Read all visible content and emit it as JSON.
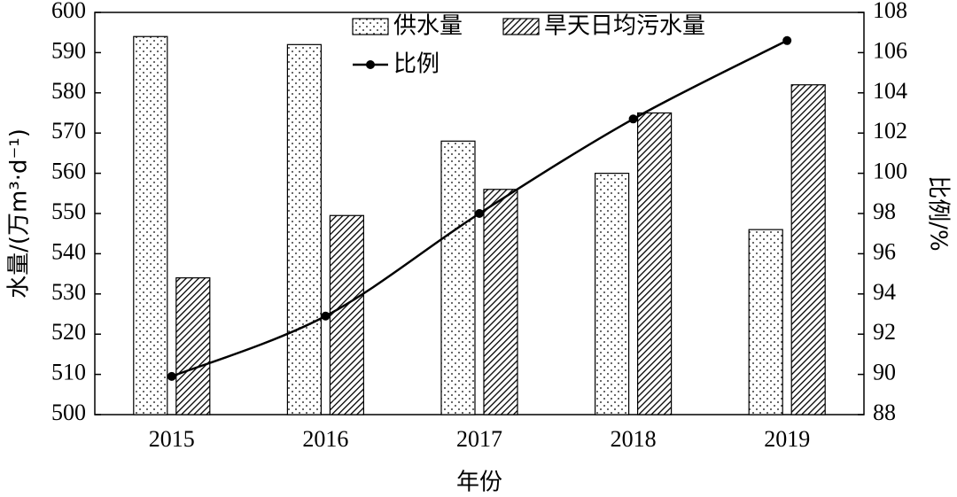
{
  "chart_data": {
    "type": "bar-line",
    "xlabel": "年份",
    "ylabel": "水量/(万m³·d⁻¹)",
    "y2label": "比例/%",
    "categories": [
      "2015",
      "2016",
      "2017",
      "2018",
      "2019"
    ],
    "series": [
      {
        "name": "供水量",
        "type": "bar",
        "color": "#000000",
        "pattern": "dots",
        "values": [
          594,
          592,
          568,
          560,
          546
        ]
      },
      {
        "name": "旱天日均污水量",
        "type": "bar",
        "color": "#000000",
        "pattern": "hatch",
        "values": [
          534,
          549.5,
          556,
          575,
          582
        ]
      },
      {
        "name": "比例",
        "type": "line",
        "axis": "y2",
        "color": "#000000",
        "values": [
          89.9,
          92.9,
          98.0,
          102.7,
          106.6
        ]
      }
    ],
    "ylim": [
      500,
      600
    ],
    "yticks": [
      500,
      510,
      520,
      530,
      540,
      550,
      560,
      570,
      580,
      590,
      600
    ],
    "y2lim": [
      88,
      108
    ],
    "y2ticks": [
      88,
      90,
      92,
      94,
      96,
      98,
      100,
      102,
      104,
      106,
      108
    ]
  }
}
